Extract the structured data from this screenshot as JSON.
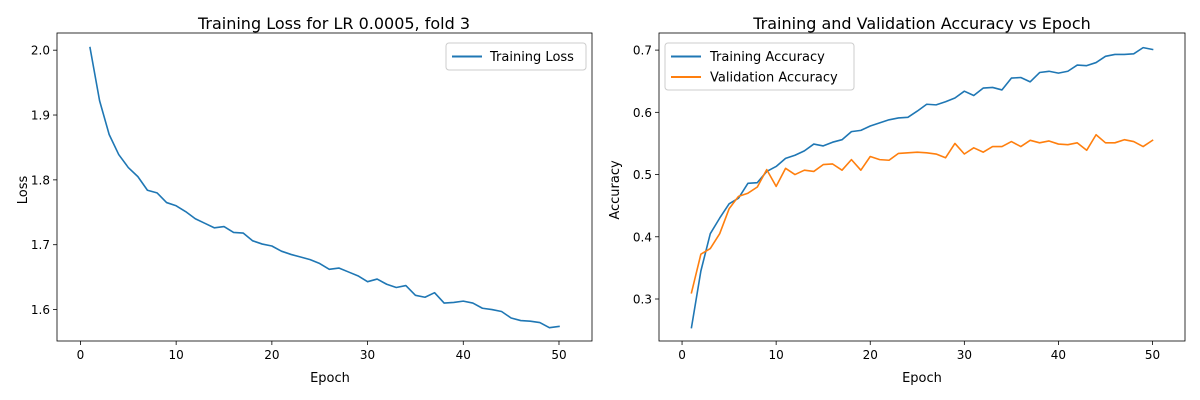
{
  "colors": {
    "blue": "#1f77b4",
    "orange": "#ff7f0e",
    "frame": "#000000",
    "legend_border": "#cccccc"
  },
  "chart_data": [
    {
      "type": "line",
      "title": "Training Loss for LR 0.0005, fold 3",
      "xlabel": "Epoch",
      "ylabel": "Loss",
      "xlim": [
        -2.45,
        53.45
      ],
      "ylim": [
        1.5515,
        2.0265
      ],
      "xticks": [
        0,
        10,
        20,
        30,
        40,
        50
      ],
      "yticks": [
        1.6,
        1.7,
        1.8,
        1.9,
        2.0
      ],
      "xtick_labels": [
        "0",
        "10",
        "20",
        "30",
        "40",
        "50"
      ],
      "ytick_labels": [
        "1.6",
        "1.7",
        "1.8",
        "1.9",
        "2.0"
      ],
      "grid": false,
      "legend_position": "top-right",
      "x": [
        1,
        2,
        3,
        4,
        5,
        6,
        7,
        8,
        9,
        10,
        11,
        12,
        13,
        14,
        15,
        16,
        17,
        18,
        19,
        20,
        21,
        22,
        23,
        24,
        25,
        26,
        27,
        28,
        29,
        30,
        31,
        32,
        33,
        34,
        35,
        36,
        37,
        38,
        39,
        40,
        41,
        42,
        43,
        44,
        45,
        46,
        47,
        48,
        49,
        50
      ],
      "series": [
        {
          "name": "Training Loss",
          "color": "#1f77b4",
          "values": [
            2.004,
            1.922,
            1.87,
            1.839,
            1.819,
            1.805,
            1.784,
            1.78,
            1.765,
            1.76,
            1.751,
            1.74,
            1.733,
            1.726,
            1.728,
            1.719,
            1.718,
            1.706,
            1.701,
            1.698,
            1.69,
            1.685,
            1.681,
            1.677,
            1.671,
            1.662,
            1.664,
            1.658,
            1.652,
            1.643,
            1.647,
            1.639,
            1.634,
            1.637,
            1.622,
            1.619,
            1.626,
            1.61,
            1.611,
            1.613,
            1.61,
            1.602,
            1.6,
            1.597,
            1.587,
            1.583,
            1.582,
            1.58,
            1.572,
            1.574
          ]
        }
      ]
    },
    {
      "type": "line",
      "title": "Training and Validation Accuracy vs Epoch",
      "xlabel": "Epoch",
      "ylabel": "Accuracy",
      "xlim": [
        -2.45,
        53.45
      ],
      "ylim": [
        0.2325,
        0.7275
      ],
      "xticks": [
        0,
        10,
        20,
        30,
        40,
        50
      ],
      "yticks": [
        0.3,
        0.4,
        0.5,
        0.6,
        0.7
      ],
      "xtick_labels": [
        "0",
        "10",
        "20",
        "30",
        "40",
        "50"
      ],
      "ytick_labels": [
        "0.3",
        "0.4",
        "0.5",
        "0.6",
        "0.7"
      ],
      "grid": false,
      "legend_position": "top-left",
      "x": [
        1,
        2,
        3,
        4,
        5,
        6,
        7,
        8,
        9,
        10,
        11,
        12,
        13,
        14,
        15,
        16,
        17,
        18,
        19,
        20,
        21,
        22,
        23,
        24,
        25,
        26,
        27,
        28,
        29,
        30,
        31,
        32,
        33,
        34,
        35,
        36,
        37,
        38,
        39,
        40,
        41,
        42,
        43,
        44,
        45,
        46,
        47,
        48,
        49,
        50
      ],
      "series": [
        {
          "name": "Training Accuracy",
          "color": "#1f77b4",
          "values": [
            0.254,
            0.345,
            0.405,
            0.43,
            0.453,
            0.462,
            0.486,
            0.487,
            0.505,
            0.513,
            0.526,
            0.531,
            0.538,
            0.549,
            0.546,
            0.552,
            0.556,
            0.569,
            0.571,
            0.578,
            0.583,
            0.588,
            0.591,
            0.592,
            0.602,
            0.613,
            0.612,
            0.617,
            0.623,
            0.634,
            0.627,
            0.639,
            0.64,
            0.636,
            0.655,
            0.656,
            0.649,
            0.664,
            0.666,
            0.663,
            0.666,
            0.676,
            0.675,
            0.68,
            0.69,
            0.693,
            0.693,
            0.694,
            0.704,
            0.701
          ]
        },
        {
          "name": "Validation Accuracy",
          "color": "#ff7f0e",
          "values": [
            0.31,
            0.372,
            0.381,
            0.405,
            0.445,
            0.465,
            0.47,
            0.48,
            0.508,
            0.481,
            0.51,
            0.5,
            0.507,
            0.505,
            0.516,
            0.517,
            0.507,
            0.524,
            0.507,
            0.529,
            0.524,
            0.523,
            0.534,
            0.535,
            0.536,
            0.535,
            0.533,
            0.527,
            0.55,
            0.533,
            0.543,
            0.536,
            0.545,
            0.545,
            0.553,
            0.545,
            0.555,
            0.551,
            0.554,
            0.549,
            0.548,
            0.551,
            0.539,
            0.564,
            0.551,
            0.551,
            0.556,
            0.553,
            0.545,
            0.555
          ]
        }
      ]
    }
  ]
}
